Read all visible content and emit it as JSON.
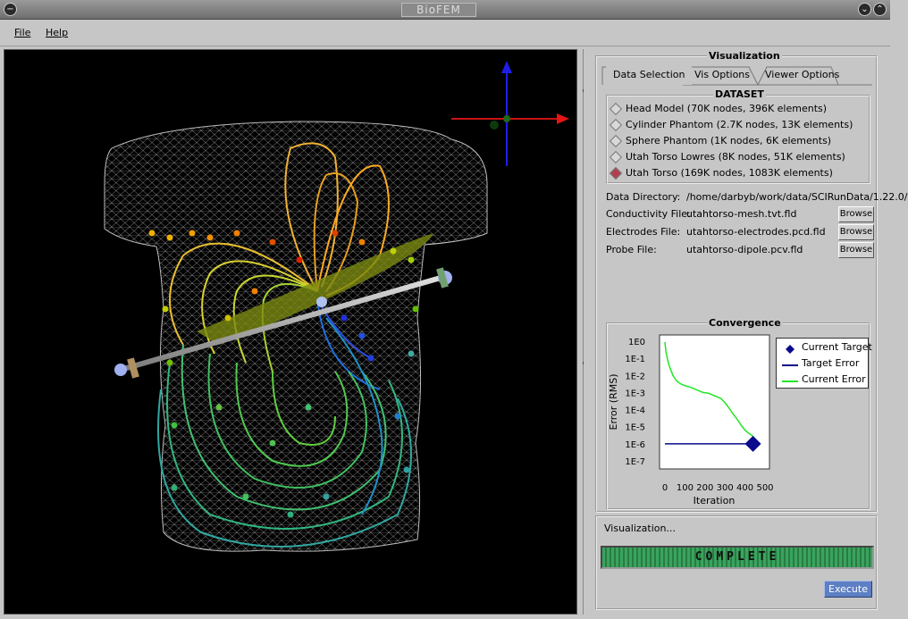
{
  "window": {
    "title": "BioFEM"
  },
  "menu": {
    "file": "File",
    "help": "Help"
  },
  "visualization": {
    "title": "Visualization",
    "tabs": [
      "Data Selection",
      "Vis Options",
      "Viewer Options"
    ],
    "active_tab": 0
  },
  "dataset": {
    "title": "DATASET",
    "items": [
      {
        "label": "Head Model (70K nodes, 396K elements)",
        "selected": false
      },
      {
        "label": "Cylinder Phantom (2.7K nodes, 13K elements)",
        "selected": false
      },
      {
        "label": "Sphere Phantom (1K nodes, 6K elements)",
        "selected": false
      },
      {
        "label": "Utah Torso Lowres (8K nodes, 51K elements)",
        "selected": false
      },
      {
        "label": "Utah Torso (169K nodes, 1083K elements)",
        "selected": true
      }
    ]
  },
  "files": {
    "data_directory_label": "Data Directory:",
    "data_directory": "/home/darbyb/work/data/SCIRunData/1.22.0/",
    "conductivity_label": "Conductivity File:",
    "conductivity": "utahtorso-mesh.tvt.fld",
    "electrodes_label": "Electrodes File:",
    "electrodes": "utahtorso-electrodes.pcd.fld",
    "probe_label": "Probe File:",
    "probe": "utahtorso-dipole.pcv.fld",
    "browse_label": "Browse"
  },
  "convergence": {
    "title": "Convergence",
    "legend": [
      "Current Target",
      "Target Error",
      "Current Error"
    ],
    "colors": {
      "target": "#0a0a8c",
      "current": "#22e622"
    }
  },
  "chart_data": {
    "type": "line",
    "title": "Convergence",
    "xlabel": "Iteration",
    "ylabel": "Error (RMS)",
    "xlim": [
      0,
      500
    ],
    "ylim": [
      -7,
      0
    ],
    "y_scale": "log",
    "x_ticks": [
      "0",
      "100",
      "200",
      "300",
      "400",
      "500"
    ],
    "y_ticks": [
      "1E0",
      "1E-1",
      "1E-2",
      "1E-3",
      "1E-4",
      "1E-5",
      "1E-6",
      "1E-7"
    ],
    "series": [
      {
        "name": "Current Error",
        "x": [
          0,
          5,
          10,
          20,
          40,
          60,
          80,
          100,
          130,
          160,
          190,
          220,
          250,
          280,
          300,
          320,
          340,
          360,
          380,
          400,
          420,
          440
        ],
        "y": [
          -0.05,
          -0.6,
          -0.9,
          -1.4,
          -2.0,
          -2.35,
          -2.5,
          -2.6,
          -2.7,
          -2.85,
          -3.0,
          -3.05,
          -3.2,
          -3.35,
          -3.6,
          -3.9,
          -4.25,
          -4.55,
          -4.9,
          -5.2,
          -5.4,
          -5.55
        ]
      },
      {
        "name": "Target Error",
        "x": [
          0,
          440
        ],
        "y": [
          -6,
          -6
        ]
      },
      {
        "name": "Current Target",
        "x": [
          440
        ],
        "y": [
          -6
        ]
      }
    ],
    "legend_position": "right"
  },
  "status": {
    "label": "Visualization...",
    "progress_text": "COMPLETE",
    "progress": 1.0
  },
  "execute_label": "Execute"
}
